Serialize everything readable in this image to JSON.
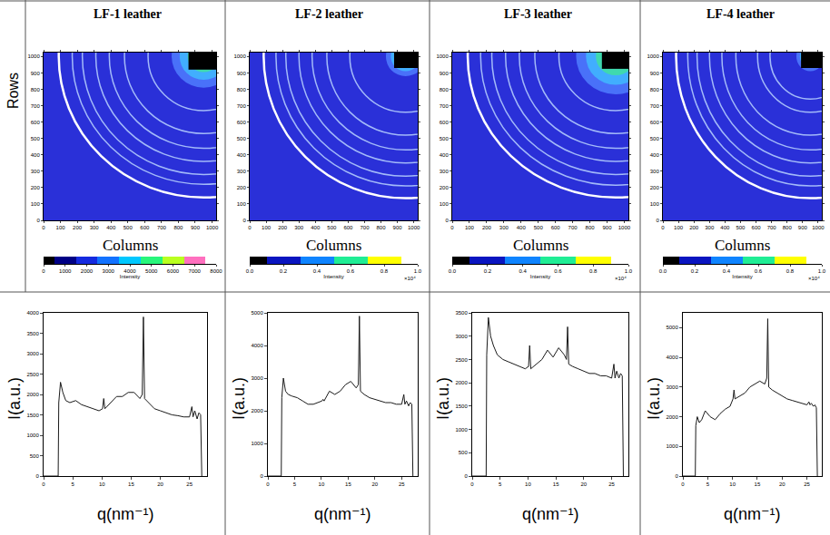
{
  "row_label": "Rows",
  "chart_data": [
    {
      "title": "LF-1 leather",
      "image": {
        "type": "rings",
        "x_label": "Columns",
        "xlim": [
          0,
          1024
        ],
        "ylim": [
          0,
          1024
        ],
        "xticks": [
          0,
          100,
          200,
          300,
          400,
          500,
          600,
          700,
          800,
          900,
          1000
        ],
        "yticks": [
          0,
          100,
          200,
          300,
          400,
          500,
          600,
          700,
          800,
          900,
          1000
        ],
        "beam_center": [
          950,
          1000
        ],
        "halo_radius": 190,
        "rings": [
          330,
          470,
          560,
          640,
          720,
          780
        ],
        "bright_ring": 860,
        "beam_stop": {
          "x": [
            860,
            1024
          ],
          "y": [
            920,
            1024
          ]
        },
        "colorbar": {
          "range": [
            0,
            8000
          ],
          "ticks": [
            0,
            1000,
            2000,
            3000,
            4000,
            5000,
            6000,
            7000,
            8000
          ],
          "label": "Intensity"
        }
      },
      "profile": {
        "type": "line",
        "x_label": "q(nm⁻¹)",
        "y_label": "I(a.u.)",
        "color": "#1a1a1a",
        "xlim": [
          0,
          28
        ],
        "xticks": [
          0,
          5,
          10,
          15,
          20,
          25
        ],
        "ylim": [
          0,
          4000
        ],
        "yticks": [
          0,
          500,
          1000,
          1500,
          2000,
          2500,
          3000,
          3500,
          4000
        ],
        "x": [
          0,
          2.5,
          2.6,
          2.9,
          3.3,
          3.8,
          4.5,
          5.5,
          6.5,
          7.5,
          8.5,
          9.5,
          10.1,
          10.3,
          10.5,
          11.5,
          12.5,
          13.5,
          14.5,
          15.5,
          16.5,
          16.9,
          17.1,
          17.3,
          18,
          19,
          20,
          21,
          22,
          23,
          24,
          25,
          25.4,
          25.6,
          25.9,
          26.3,
          26.6,
          26.9,
          27.1
        ],
        "values": [
          0,
          0,
          1800,
          2300,
          2050,
          1850,
          1800,
          1850,
          1750,
          1700,
          1650,
          1600,
          1650,
          1900,
          1650,
          1800,
          1950,
          1950,
          2050,
          2050,
          1900,
          2000,
          3900,
          1900,
          1800,
          1650,
          1600,
          1550,
          1500,
          1480,
          1450,
          1450,
          1700,
          1450,
          1600,
          1400,
          1550,
          1500,
          0
        ]
      }
    },
    {
      "title": "LF-2 leather",
      "image": {
        "type": "rings",
        "x_label": "Columns",
        "xlim": [
          0,
          1024
        ],
        "ylim": [
          0,
          1024
        ],
        "xticks": [
          0,
          100,
          200,
          300,
          400,
          500,
          600,
          700,
          800,
          900,
          1000
        ],
        "yticks": [
          0,
          100,
          200,
          300,
          400,
          500,
          600,
          700,
          800,
          900,
          1000
        ],
        "beam_center": [
          950,
          1000
        ],
        "halo_radius": 120,
        "rings": [
          340,
          480,
          570,
          650,
          730,
          790
        ],
        "bright_ring": 865,
        "beam_stop": {
          "x": [
            880,
            1024
          ],
          "y": [
            930,
            1024
          ]
        },
        "colorbar": {
          "range": [
            0,
            1
          ],
          "ticks": [
            {
              "value": 0,
              "label": "0.0"
            },
            {
              "value": 0.2,
              "label": "0.2"
            },
            {
              "value": 0.4,
              "label": "0.4"
            },
            {
              "value": 0.6,
              "label": "0.6"
            },
            {
              "value": 0.8,
              "label": "0.8"
            },
            {
              "value": 1,
              "label": "1.0"
            }
          ],
          "label": "Intensity",
          "multiplier": "×10⁴"
        }
      },
      "profile": {
        "type": "line",
        "x_label": "q(nm⁻¹)",
        "y_label": "I(a.u.)",
        "color": "#1a1a1a",
        "xlim": [
          0,
          28
        ],
        "xticks": [
          0,
          5,
          10,
          15,
          20,
          25
        ],
        "ylim": [
          0,
          5000
        ],
        "yticks": [
          0,
          1000,
          2000,
          3000,
          4000,
          5000
        ],
        "x": [
          0,
          2.5,
          2.6,
          2.9,
          3.3,
          3.8,
          4.5,
          5.5,
          6.5,
          7.5,
          8.5,
          9.5,
          10.1,
          10.3,
          10.5,
          11.5,
          12.5,
          13.5,
          14.5,
          15.5,
          16.5,
          16.9,
          17.1,
          17.3,
          18,
          19,
          20,
          21,
          22,
          23,
          24,
          25,
          25.4,
          25.6,
          25.9,
          26.3,
          26.6,
          26.9,
          27.1
        ],
        "values": [
          0,
          0,
          2400,
          3000,
          2600,
          2500,
          2450,
          2400,
          2300,
          2200,
          2200,
          2250,
          2300,
          2350,
          2300,
          2600,
          2500,
          2600,
          2800,
          2900,
          2700,
          2800,
          4900,
          2600,
          2500,
          2400,
          2350,
          2300,
          2250,
          2250,
          2200,
          2200,
          2500,
          2200,
          2300,
          2150,
          2250,
          2200,
          0
        ]
      }
    },
    {
      "title": "LF-3 leather",
      "image": {
        "type": "rings",
        "x_label": "Columns",
        "xlim": [
          0,
          1024
        ],
        "ylim": [
          0,
          1024
        ],
        "xticks": [
          0,
          100,
          200,
          300,
          400,
          500,
          600,
          700,
          800,
          900,
          1000
        ],
        "yticks": [
          0,
          100,
          200,
          300,
          400,
          500,
          600,
          700,
          800,
          900,
          1000
        ],
        "beam_center": [
          950,
          1000
        ],
        "halo_radius": 230,
        "rings": [
          330,
          470,
          560,
          640,
          720,
          785
        ],
        "bright_ring": 860,
        "beam_stop": {
          "x": [
            870,
            1024
          ],
          "y": [
            925,
            1024
          ]
        },
        "colorbar": {
          "range": [
            0,
            1
          ],
          "ticks": [
            {
              "value": 0,
              "label": "0.0"
            },
            {
              "value": 0.2,
              "label": "0.2"
            },
            {
              "value": 0.4,
              "label": "0.4"
            },
            {
              "value": 0.6,
              "label": "0.6"
            },
            {
              "value": 0.8,
              "label": "0.8"
            },
            {
              "value": 1,
              "label": "1.0"
            }
          ],
          "label": "Intensity",
          "multiplier": "×10⁴"
        }
      },
      "profile": {
        "type": "line",
        "x_label": "q(nm⁻¹)",
        "y_label": "I(a.u.)",
        "color": "#1a1a1a",
        "xlim": [
          0,
          28
        ],
        "xticks": [
          0,
          5,
          10,
          15,
          20,
          25
        ],
        "ylim": [
          0,
          3500
        ],
        "yticks": [
          0,
          500,
          1000,
          1500,
          2000,
          2500,
          3000,
          3500
        ],
        "x": [
          0,
          2.5,
          2.6,
          2.9,
          3.3,
          3.8,
          4.5,
          5.5,
          6.5,
          7.5,
          8.5,
          9.5,
          10.1,
          10.3,
          10.5,
          11.5,
          12.5,
          13.5,
          14.5,
          15.5,
          16.5,
          16.9,
          17.1,
          17.3,
          18,
          19,
          20,
          21,
          22,
          23,
          24,
          25,
          25.4,
          25.6,
          25.9,
          26.3,
          26.6,
          26.9,
          27.1
        ],
        "values": [
          0,
          0,
          2600,
          3400,
          3000,
          2800,
          2600,
          2500,
          2450,
          2400,
          2350,
          2300,
          2350,
          2800,
          2300,
          2400,
          2500,
          2700,
          2550,
          2750,
          2600,
          2500,
          3200,
          2400,
          2350,
          2300,
          2250,
          2200,
          2200,
          2150,
          2150,
          2100,
          2400,
          2100,
          2250,
          2100,
          2200,
          2150,
          0
        ]
      }
    },
    {
      "title": "LF-4 leather",
      "image": {
        "type": "rings",
        "x_label": "Columns",
        "xlim": [
          0,
          1024
        ],
        "ylim": [
          0,
          1024
        ],
        "xticks": [
          0,
          100,
          200,
          300,
          400,
          500,
          600,
          700,
          800,
          900,
          1000
        ],
        "yticks": [
          0,
          100,
          200,
          300,
          400,
          500,
          600,
          700,
          800,
          900,
          1000
        ],
        "beam_center": [
          950,
          1000
        ],
        "halo_radius": 90,
        "rings": [
          260,
          340,
          480,
          570,
          650,
          730,
          790
        ],
        "bright_ring": 865,
        "beam_stop": {
          "x": [
            890,
            1024
          ],
          "y": [
            930,
            1024
          ]
        },
        "colorbar": {
          "range": [
            0,
            1
          ],
          "ticks": [
            {
              "value": 0,
              "label": "0.0"
            },
            {
              "value": 0.2,
              "label": "0.2"
            },
            {
              "value": 0.4,
              "label": "0.4"
            },
            {
              "value": 0.6,
              "label": "0.6"
            },
            {
              "value": 0.8,
              "label": "0.8"
            },
            {
              "value": 1,
              "label": "1.0"
            }
          ],
          "label": "Intensity",
          "multiplier": "×10⁴"
        }
      },
      "profile": {
        "type": "line",
        "x_label": "q(nm⁻¹)",
        "y_label": "I(a.u.)",
        "color": "#1a1a1a",
        "xlim": [
          0,
          28
        ],
        "xticks": [
          0,
          5,
          10,
          15,
          20,
          25
        ],
        "ylim": [
          0,
          5500
        ],
        "yticks": [
          0,
          1000,
          2000,
          3000,
          4000,
          5000
        ],
        "x": [
          0,
          2.5,
          2.6,
          2.9,
          3.3,
          3.8,
          4.5,
          5.5,
          6.5,
          7.5,
          8.5,
          9.5,
          10.1,
          10.3,
          10.5,
          11.5,
          12.5,
          13.5,
          14.5,
          15.5,
          16.5,
          16.9,
          17.1,
          17.3,
          18,
          19,
          20,
          21,
          22,
          23,
          24,
          25,
          25.4,
          25.6,
          25.9,
          26.3,
          26.6,
          26.9,
          27.1
        ],
        "values": [
          0,
          0,
          1700,
          2000,
          1800,
          1900,
          2200,
          2000,
          1900,
          2100,
          2250,
          2350,
          2600,
          2900,
          2600,
          2700,
          2800,
          3000,
          3100,
          3200,
          3100,
          3300,
          5300,
          3000,
          2900,
          2800,
          2700,
          2600,
          2550,
          2500,
          2450,
          2400,
          2500,
          2400,
          2450,
          2350,
          2400,
          2300,
          0
        ]
      }
    }
  ]
}
